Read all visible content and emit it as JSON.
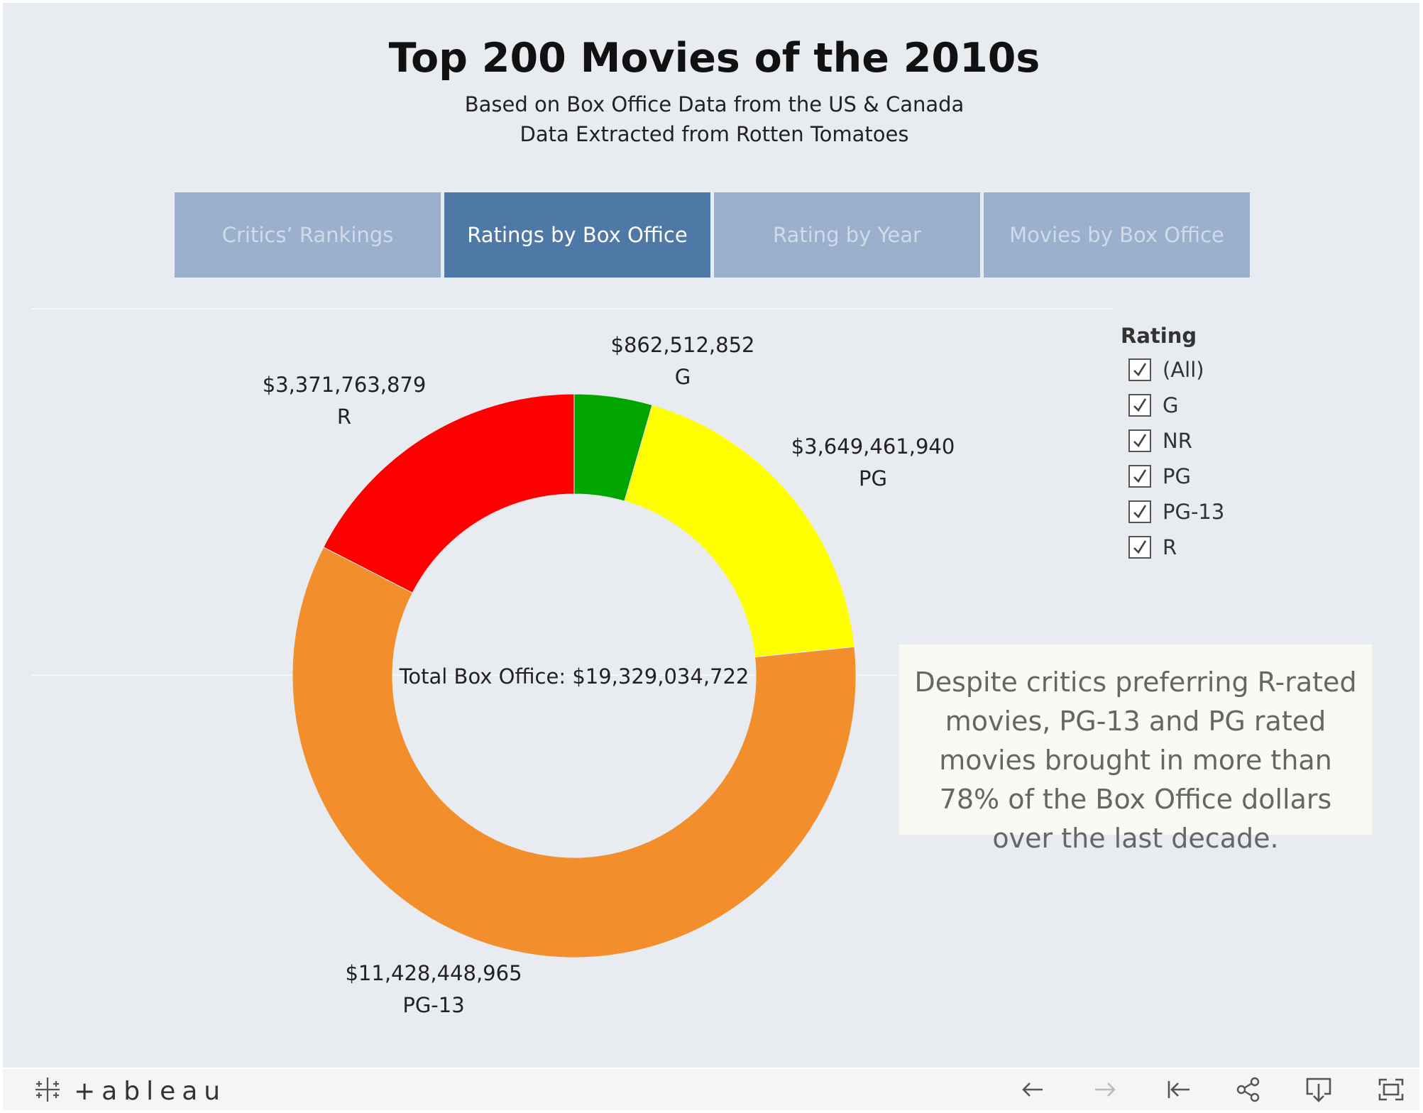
{
  "header": {
    "title": "Top 200 Movies of the 2010s",
    "subtitle_line1": "Based on Box Office Data from the US & Canada",
    "subtitle_line2": "Data Extracted from Rotten Tomatoes"
  },
  "tabs": [
    {
      "label": "Critics’ Rankings",
      "active": false
    },
    {
      "label": "Ratings by Box Office",
      "active": true
    },
    {
      "label": "Rating by Year",
      "active": false
    },
    {
      "label": "Movies by Box Office",
      "active": false
    }
  ],
  "chart_data": {
    "type": "pie",
    "variant": "donut",
    "categories": [
      "G",
      "PG",
      "PG-13",
      "R"
    ],
    "values": [
      862512852,
      3649461940,
      11428448965,
      3371763879
    ],
    "value_labels": [
      "$862,512,852",
      "$3,649,461,940",
      "$11,428,448,965",
      "$3,371,763,879"
    ],
    "colors": [
      "#00a500",
      "#ffff00",
      "#f28e2b",
      "#ff0000"
    ],
    "center_label": "Total Box Office: $19,329,034,722",
    "start_angle": "12 o'clock, clockwise"
  },
  "legend": {
    "title": "Rating",
    "items": [
      {
        "label": "(All)",
        "checked": true
      },
      {
        "label": "G",
        "checked": true
      },
      {
        "label": "NR",
        "checked": true
      },
      {
        "label": "PG",
        "checked": true
      },
      {
        "label": "PG-13",
        "checked": true
      },
      {
        "label": "R",
        "checked": true
      }
    ]
  },
  "annotation": {
    "text": "Despite critics preferring R-rated movies, PG-13 and PG rated movies brought in more than 78% of the Box Office dollars over the last decade."
  },
  "toolbar": {
    "logo_text": "+ableau",
    "buttons": [
      "undo-icon",
      "redo-icon",
      "revert-icon",
      "share-icon",
      "download-icon",
      "fullscreen-icon"
    ]
  }
}
